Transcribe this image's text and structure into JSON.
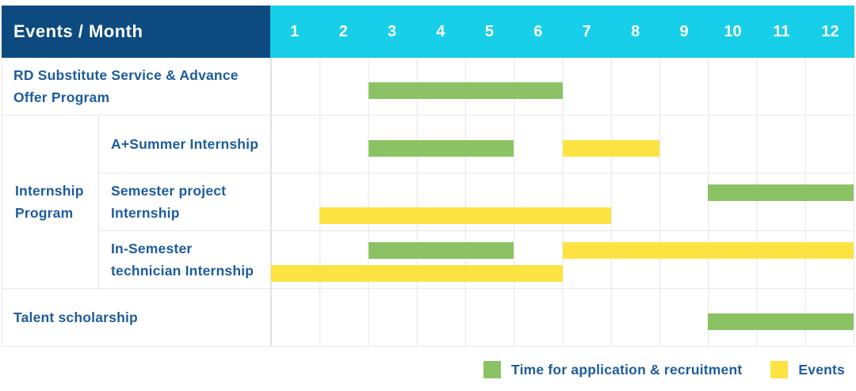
{
  "colors": {
    "header_bg": "#0D4A80",
    "months_bg": "#17CFE9",
    "label_text": "#1D5C9C",
    "application": "#8BC364",
    "events": "#FDE342"
  },
  "table": {
    "corner_label": "Events / Month",
    "months": [
      "1",
      "2",
      "3",
      "4",
      "5",
      "6",
      "7",
      "8",
      "9",
      "10",
      "11",
      "12"
    ]
  },
  "rows": [
    {
      "group": "",
      "label": "RD Substitute Service & Advance Offer Program",
      "bars": [
        {
          "type": "application",
          "from": 3,
          "to": 7,
          "lane": "single"
        }
      ]
    },
    {
      "group": "Internship Program",
      "label": "A+Summer Internship",
      "bars": [
        {
          "type": "application",
          "from": 3,
          "to": 6,
          "lane": "single"
        },
        {
          "type": "events",
          "from": 7,
          "to": 9,
          "lane": "single"
        }
      ]
    },
    {
      "group": "Internship Program",
      "label": "Semester project Internship",
      "bars": [
        {
          "type": "application",
          "from": 10,
          "to": 13,
          "lane": "top"
        },
        {
          "type": "events",
          "from": 2,
          "to": 8,
          "lane": "bottom"
        }
      ]
    },
    {
      "group": "Internship Program",
      "label": "In-Semester technician Internship",
      "bars": [
        {
          "type": "application",
          "from": 3,
          "to": 6,
          "lane": "top"
        },
        {
          "type": "events",
          "from": 7,
          "to": 13,
          "lane": "top"
        },
        {
          "type": "events",
          "from": 1,
          "to": 7,
          "lane": "bottom"
        }
      ]
    },
    {
      "group": "",
      "label": "Talent scholarship",
      "bars": [
        {
          "type": "application",
          "from": 10,
          "to": 13,
          "lane": "single"
        }
      ]
    }
  ],
  "legend": [
    {
      "key": "application",
      "label": "Time for application & recruitment",
      "color": "#8BC364"
    },
    {
      "key": "events",
      "label": "Events",
      "color": "#FDE342"
    }
  ],
  "chart_data": {
    "type": "bar",
    "subtype": "gantt",
    "title": "Events / Month",
    "x_axis": {
      "label": "Month",
      "ticks": [
        "1",
        "2",
        "3",
        "4",
        "5",
        "6",
        "7",
        "8",
        "9",
        "10",
        "11",
        "12"
      ],
      "range": [
        1,
        12
      ]
    },
    "legend_position": "bottom-right",
    "grid": true,
    "series": [
      {
        "row": "RD Substitute Service & Advance Offer Program",
        "group": "",
        "segments": [
          {
            "kind": "Time for application & recruitment",
            "start_month": 3,
            "end_month": 6
          }
        ]
      },
      {
        "row": "A+Summer Internship",
        "group": "Internship Program",
        "segments": [
          {
            "kind": "Time for application & recruitment",
            "start_month": 3,
            "end_month": 5
          },
          {
            "kind": "Events",
            "start_month": 7,
            "end_month": 8
          }
        ]
      },
      {
        "row": "Semester project Internship",
        "group": "Internship Program",
        "segments": [
          {
            "kind": "Time for application & recruitment",
            "start_month": 10,
            "end_month": 12
          },
          {
            "kind": "Events",
            "start_month": 2,
            "end_month": 7
          }
        ]
      },
      {
        "row": "In-Semester technician Internship",
        "group": "Internship Program",
        "segments": [
          {
            "kind": "Time for application & recruitment",
            "start_month": 3,
            "end_month": 5
          },
          {
            "kind": "Events",
            "start_month": 7,
            "end_month": 12
          },
          {
            "kind": "Events",
            "start_month": 1,
            "end_month": 6
          }
        ]
      },
      {
        "row": "Talent scholarship",
        "group": "",
        "segments": [
          {
            "kind": "Time for application & recruitment",
            "start_month": 10,
            "end_month": 12
          }
        ]
      }
    ]
  }
}
